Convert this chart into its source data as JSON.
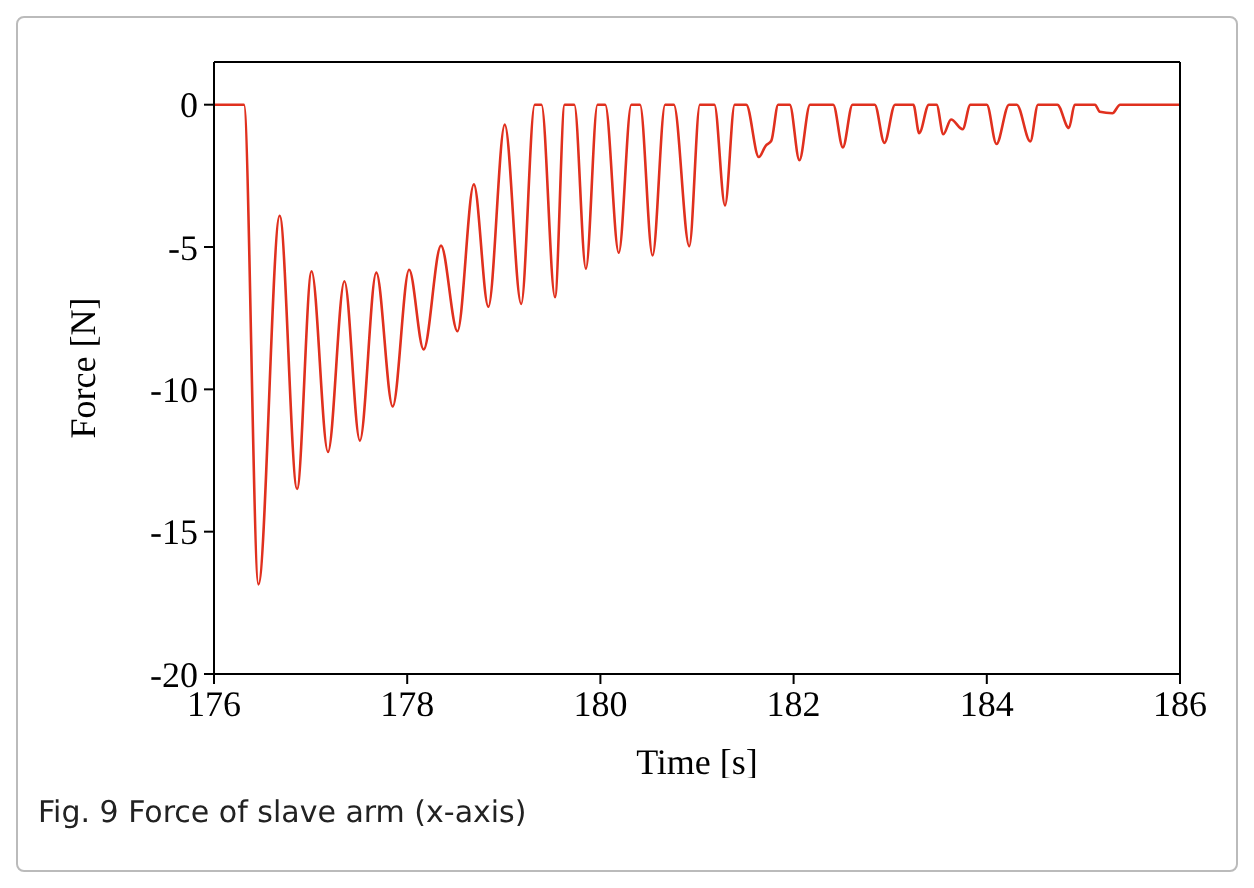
{
  "chart_data": {
    "type": "line",
    "xlabel": "Time [s]",
    "ylabel": "Force [N]",
    "annotations": [
      "Fig. 9  Force of slave arm (x-axis)"
    ],
    "x": [
      176,
      176.31,
      176.46,
      176.68,
      176.86,
      177.01,
      177.18,
      177.35,
      177.51,
      177.68,
      177.85,
      178.02,
      178.17,
      178.35,
      178.52,
      178.69,
      178.84,
      179.01,
      179.18,
      179.32,
      179.39,
      179.53,
      179.63,
      179.73,
      179.85,
      179.97,
      180.05,
      180.19,
      180.32,
      180.41,
      180.54,
      180.67,
      180.76,
      180.92,
      181.03,
      181.18,
      181.29,
      181.39,
      181.51,
      181.64,
      181.71,
      181.77,
      181.84,
      181.96,
      182.06,
      182.17,
      182.41,
      182.51,
      182.61,
      182.84,
      182.94,
      183.05,
      183.24,
      183.3,
      183.4,
      183.48,
      183.55,
      183.63,
      183.75,
      183.83,
      184,
      184.1,
      184.23,
      184.31,
      184.45,
      184.53,
      184.73,
      184.85,
      184.91,
      185.12,
      185.17,
      185.3,
      185.38,
      186
    ],
    "series": [
      {
        "color": "#e0301e",
        "values": [
          0,
          0,
          -16.85,
          -3.9,
          -13.5,
          -5.85,
          -12.2,
          -6.2,
          -11.8,
          -5.9,
          -10.6,
          -5.8,
          -8.6,
          -4.95,
          -7.96,
          -2.8,
          -7.1,
          -0.7,
          -7.0,
          0,
          0,
          -6.76,
          0,
          0,
          -5.76,
          0,
          0,
          -5.2,
          0,
          0,
          -5.3,
          0,
          0,
          -4.97,
          0,
          0,
          -3.54,
          0,
          0,
          -1.84,
          -1.45,
          -1.26,
          0,
          0,
          -1.95,
          0,
          0,
          -1.5,
          0,
          0,
          -1.34,
          0,
          0,
          -1.0,
          0,
          0,
          -1.04,
          -0.52,
          -0.86,
          0,
          0,
          -1.38,
          0,
          0,
          -1.29,
          0,
          0,
          -0.82,
          0,
          0,
          -0.25,
          -0.3,
          0,
          0
        ]
      }
    ],
    "xlim": [
      176,
      186
    ],
    "xticks": [
      176,
      178,
      180,
      182,
      184,
      186
    ],
    "ylim": [
      -20,
      1.5
    ],
    "yticks": [
      -20,
      -15,
      -10,
      -5,
      0
    ],
    "grid": false,
    "legend": false,
    "marker": "none",
    "line_style": "solid"
  }
}
